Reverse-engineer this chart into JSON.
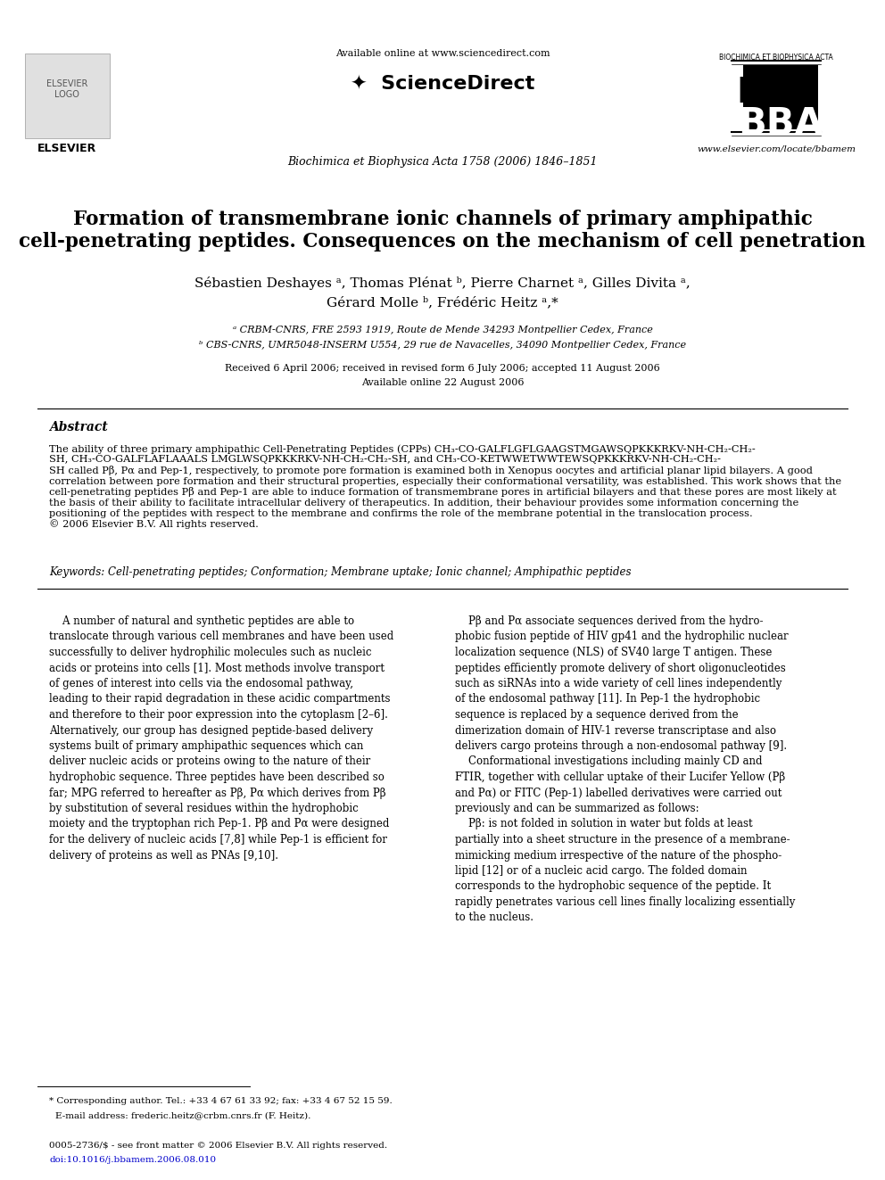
{
  "page_bg": "#ffffff",
  "header": {
    "available_online": "Available online at www.sciencedirect.com",
    "journal_name": "Biochimica et Biophysica Acta 1758 (2006) 1846–1851",
    "website": "www.elsevier.com/locate/bbamem"
  },
  "title": "Formation of transmembrane ionic channels of primary amphipathic\ncell-penetrating peptides. Consequences on the mechanism of cell penetration",
  "authors": "Sébastien Deshayes á, Thomas Plénat ᵇ, Pierre Charnet á, Gilles Divita á,\nGérard Molle ᵇ, Frédéric Heitz á,*",
  "affil_a": "á CRBM-CNRS, FRE 2593 1919, Route de Mende 34293 Montpellier Cedex, France",
  "affil_b": "ᵇ CBS-CNRS, UMR5048-INSERM U554, 29 rue de Navacelles, 34090 Montpellier Cedex, France",
  "received": "Received 6 April 2006; received in revised form 6 July 2006; accepted 11 August 2006",
  "available": "Available online 22 August 2006",
  "abstract_title": "Abstract",
  "abstract_text": "The ability of three primary amphipathic Cell-Penetrating Peptides (CPPs) CH₃-CO-GALFLGFLGAAGSTMGAWSQPKKKRKV-NH-CH₂-CH₂-SH, CH₃-CO-GALFLAFLAAALS LMGLWSQPKKKRKV-NH-CH₂-CH₂-SH, and CH₃-CO-KETWWETWWTEWSQPKKKRKV-NH-CH₂-CH₂-SH called Pβ, Pα and Pep-1, respectively, to promote pore formation is examined both in Xenopus oocytes and artificial planar lipid bilayers. A good correlation between pore formation and their structural properties, especially their conformational versatility, was established. This work shows that the cell-penetrating peptides Pβ and Pep-1 are able to induce formation of transmembrane pores in artificial bilayers and that these pores are most likely at the basis of their ability to facilitate intracellular delivery of therapeutics. In addition, their behaviour provides some information concerning the positioning of the peptides with respect to the membrane and confirms the role of the membrane potential in the translocation process.\n© 2006 Elsevier B.V. All rights reserved.",
  "keywords": "Keywords: Cell-penetrating peptides; Conformation; Membrane uptake; Ionic channel; Amphipathic peptides",
  "body_left": "A number of natural and synthetic peptides are able to translocate through various cell membranes and have been used successfully to deliver hydrophilic molecules such as nucleic acids or proteins into cells [1]. Most methods involve transport of genes of interest into cells via the endosomal pathway, leading to their rapid degradation in these acidic compartments and therefore to their poor expression into the cytoplasm [2–6]. Alternatively, our group has designed peptide-based delivery systems built of primary amphipathic sequences which can deliver nucleic acids or proteins owing to the nature of their hydrophobic sequence. Three peptides have been described so far; MPG referred to hereafter as Pβ, Pα which derives from Pβ by substitution of several residues within the hydrophobic moiety and the tryptophan rich Pep-1. Pβ and Pα were designed for the delivery of nucleic acids [7,8] while Pep-1 is efficient for delivery of proteins as well as PNAs [9,10].",
  "body_right": "Pβ and Pα associate sequences derived from the hydrophobic fusion peptide of HIV gp41 and the hydrophilic nuclear localization sequence (NLS) of SV40 large T antigen. These peptides efficiently promote delivery of short oligonucleotides such as siRNAs into a wide variety of cell lines independently of the endosomal pathway [11]. In Pep-1 the hydrophobic sequence is replaced by a sequence derived from the dimerization domain of HIV-1 reverse transcriptase and also delivers cargo proteins through a non-endosomal pathway [9].\n    Conformational investigations including mainly CD and FTIR, together with cellular uptake of their Lucifer Yellow (Pβ and Pα) or FITC (Pep-1) labelled derivatives were carried out previously and can be summarized as follows:\n    Pβ: is not folded in solution in water but folds at least partially into a sheet structure in the presence of a membrane-mimicking medium irrespective of the nature of the phospholipid [12] or of a nucleic acid cargo. The folded domain corresponds to the hydrophobic sequence of the peptide. It rapidly penetrates various cell lines finally localizing essentially to the nucleus.",
  "footnote": "* Corresponding author. Tel.: +33 4 67 61 33 92; fax: +33 4 67 52 15 59.\n  E-mail address: frederic.heitz@crbm.cnrs.fr (F. Heitz).",
  "copyright": "0005-2736/$ - see front matter © 2006 Elsevier B.V. All rights reserved.",
  "doi": "doi:10.1016/j.bbamem.2006.08.010",
  "link_color": "#0000cc"
}
